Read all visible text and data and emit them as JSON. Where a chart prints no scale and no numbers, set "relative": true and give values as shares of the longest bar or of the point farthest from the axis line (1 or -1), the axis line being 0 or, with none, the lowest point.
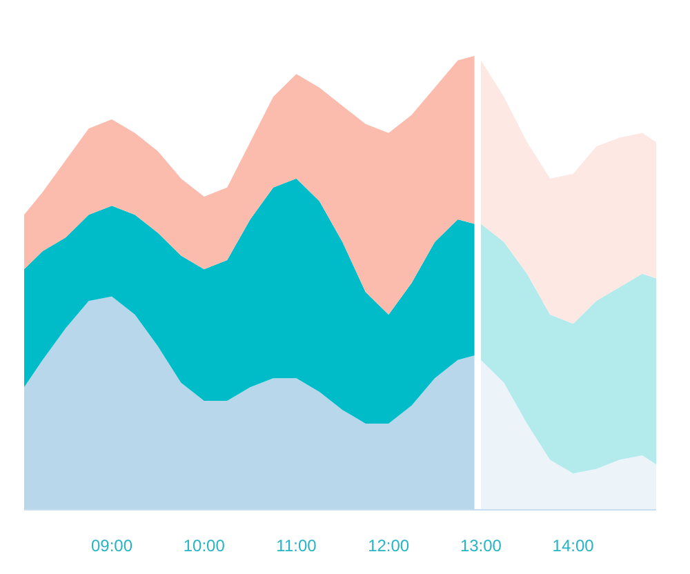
{
  "chart_data": {
    "type": "area",
    "stacked": true,
    "relative": true,
    "x": [
      8.05,
      8.25,
      8.5,
      8.75,
      9.0,
      9.25,
      9.5,
      9.75,
      10.0,
      10.25,
      10.5,
      10.75,
      11.0,
      11.25,
      11.5,
      11.75,
      12.0,
      12.25,
      12.5,
      12.75,
      12.93,
      13.0,
      13.25,
      13.5,
      13.75,
      14.0,
      14.25,
      14.5,
      14.75,
      14.9
    ],
    "xlim": [
      8.05,
      14.9
    ],
    "xticks": [
      {
        "value": 9,
        "label": "09:00"
      },
      {
        "value": 10,
        "label": "10:00"
      },
      {
        "value": 11,
        "label": "11:00"
      },
      {
        "value": 12,
        "label": "12:00"
      },
      {
        "value": 13,
        "label": "13:00"
      },
      {
        "value": 14,
        "label": "14:00"
      }
    ],
    "series": [
      {
        "color": "#b8d7ea",
        "values": [
          0.27,
          0.33,
          0.4,
          0.46,
          0.47,
          0.43,
          0.36,
          0.28,
          0.24,
          0.24,
          0.27,
          0.29,
          0.29,
          0.26,
          0.22,
          0.19,
          0.19,
          0.23,
          0.29,
          0.33,
          0.34,
          null,
          null,
          null,
          null,
          null,
          null,
          null,
          null,
          null
        ]
      },
      {
        "color": "#00bcc8",
        "values": [
          0.26,
          0.24,
          0.2,
          0.19,
          0.2,
          0.22,
          0.25,
          0.28,
          0.29,
          0.31,
          0.37,
          0.42,
          0.44,
          0.42,
          0.37,
          0.29,
          0.24,
          0.27,
          0.3,
          0.31,
          0.29,
          null,
          null,
          null,
          null,
          null,
          null,
          null,
          null,
          null
        ]
      },
      {
        "color": "#fbbcae",
        "values": [
          0.12,
          0.13,
          0.17,
          0.19,
          0.19,
          0.18,
          0.18,
          0.17,
          0.16,
          0.16,
          0.17,
          0.2,
          0.23,
          0.25,
          0.3,
          0.37,
          0.4,
          0.37,
          0.34,
          0.35,
          0.37,
          null,
          null,
          null,
          null,
          null,
          null,
          null,
          null,
          null
        ]
      },
      {
        "color": "#ecf3f9",
        "values": [
          null,
          null,
          null,
          null,
          null,
          null,
          null,
          null,
          null,
          null,
          null,
          null,
          null,
          null,
          null,
          null,
          null,
          null,
          null,
          null,
          null,
          0.33,
          0.28,
          0.19,
          0.11,
          0.08,
          0.09,
          0.11,
          0.12,
          0.1
        ]
      },
      {
        "color": "#b3eaec",
        "values": [
          null,
          null,
          null,
          null,
          null,
          null,
          null,
          null,
          null,
          null,
          null,
          null,
          null,
          null,
          null,
          null,
          null,
          null,
          null,
          null,
          null,
          0.3,
          0.31,
          0.33,
          0.32,
          0.33,
          0.37,
          0.38,
          0.4,
          0.41
        ]
      },
      {
        "color": "#fde8e4",
        "values": [
          null,
          null,
          null,
          null,
          null,
          null,
          null,
          null,
          null,
          null,
          null,
          null,
          null,
          null,
          null,
          null,
          null,
          null,
          null,
          null,
          null,
          0.36,
          0.32,
          0.29,
          0.3,
          0.33,
          0.34,
          0.33,
          0.31,
          0.3
        ]
      }
    ],
    "grid": false
  }
}
